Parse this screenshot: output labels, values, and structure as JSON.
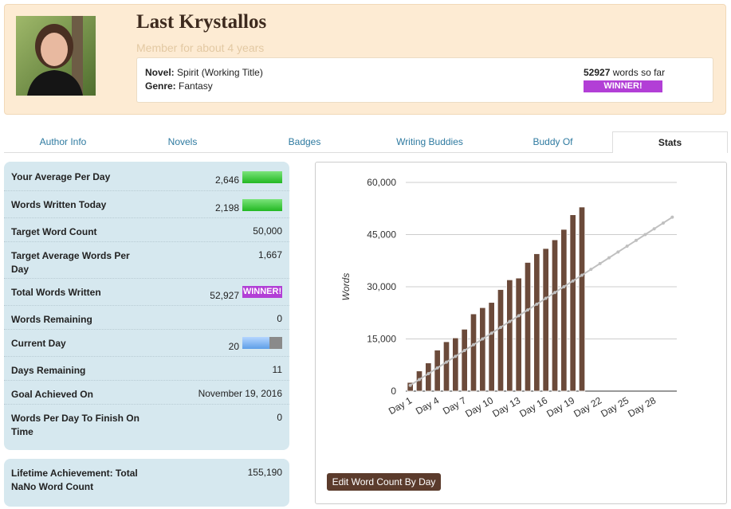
{
  "header": {
    "name": "Last Krystallos",
    "member_since": "Member for about 4 years",
    "novel_label": "Novel:",
    "novel": "Spirit (Working Title)",
    "genre_label": "Genre:",
    "genre": "Fantasy",
    "word_count": "52927",
    "word_count_suffix": "words so far",
    "badge": "WINNER!"
  },
  "tabs": [
    "Author Info",
    "Novels",
    "Badges",
    "Writing Buddies",
    "Buddy Of",
    "Stats"
  ],
  "stats": {
    "rows": [
      {
        "label": "Your Average Per Day",
        "value": "2,646"
      },
      {
        "label": "Words Written Today",
        "value": "2,198"
      },
      {
        "label": "Target Word Count",
        "value": "50,000"
      },
      {
        "label": "Target Average Words Per Day",
        "value": "1,667"
      },
      {
        "label": "Total Words Written",
        "value": "52,927",
        "badge": "WINNER!"
      },
      {
        "label": "Words Remaining",
        "value": "0"
      },
      {
        "label": "Current Day",
        "value": "20"
      },
      {
        "label": "Days Remaining",
        "value": "11"
      },
      {
        "label": "Goal Achieved On",
        "value": "November 19, 2016"
      },
      {
        "label": "Words Per Day To Finish On Time",
        "value": "0"
      }
    ]
  },
  "lifetime": {
    "label": "Lifetime Achievement: Total NaNo Word Count",
    "value": "155,190"
  },
  "chart_data": {
    "type": "bar",
    "y_label": "Words",
    "categories": [
      "Day 1",
      null,
      null,
      "Day 4",
      null,
      null,
      "Day 7",
      null,
      null,
      "Day 10",
      null,
      null,
      "Day 13",
      null,
      null,
      "Day 16",
      null,
      null,
      "Day 19",
      null,
      null,
      "Day 22",
      null,
      null,
      "Day 25",
      null,
      null,
      "Day 28",
      null,
      null
    ],
    "series": [
      {
        "color": "#6b4a3a",
        "values": [
          2500,
          5800,
          8100,
          11800,
          14200,
          15300,
          17800,
          22200,
          24000,
          25500,
          29200,
          32000,
          32500,
          37000,
          39500,
          41000,
          43500,
          46500,
          50700,
          52927,
          null,
          null,
          null,
          null,
          null,
          null,
          null,
          null,
          null,
          null
        ]
      },
      {
        "type": "line",
        "color": "#c0c0c0",
        "values": [
          1667,
          3333,
          5000,
          6667,
          8333,
          10000,
          11667,
          13333,
          15000,
          16667,
          18333,
          20000,
          21667,
          23333,
          25000,
          26667,
          28333,
          30000,
          31667,
          33333,
          35000,
          36667,
          38333,
          40000,
          41667,
          43333,
          45000,
          46667,
          48333,
          50000
        ]
      }
    ],
    "ylim": [
      0,
      60000
    ],
    "yticks": [
      0,
      {
        "value": 15000,
        "label": "15,000"
      },
      {
        "value": 30000,
        "label": "30,000"
      },
      {
        "value": 45000,
        "label": "45,000"
      },
      {
        "value": 60000,
        "label": "60,000"
      }
    ],
    "grid": true
  },
  "button": "Edit Word Count By Day"
}
